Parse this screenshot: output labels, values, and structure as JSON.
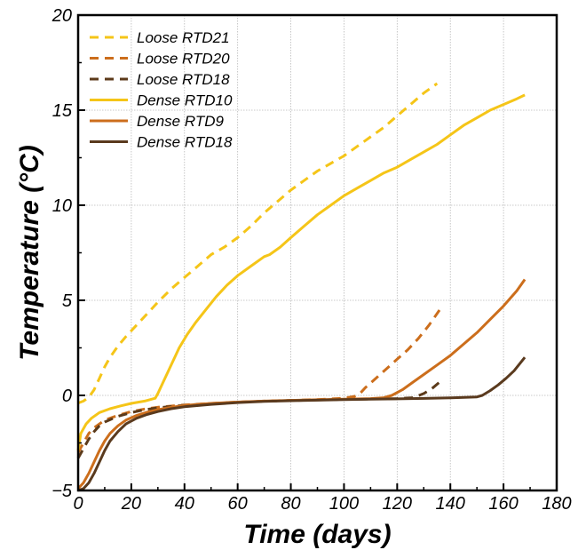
{
  "chart_data": {
    "type": "line",
    "xlabel": "Time (days)",
    "ylabel": "Temperature (°C)",
    "xlim": [
      0,
      180
    ],
    "ylim": [
      -5,
      20
    ],
    "xticks": [
      "0",
      "20",
      "40",
      "60",
      "80",
      "100",
      "120",
      "140",
      "160",
      "180"
    ],
    "yticks": [
      "−5",
      "0",
      "5",
      "10",
      "15",
      "20"
    ],
    "grid": true,
    "legend_position": "top-left",
    "series": [
      {
        "name": "Loose RTD21",
        "color": "#F5C518",
        "dash": "dashed",
        "points": [
          [
            0,
            -0.4
          ],
          [
            2,
            -0.3
          ],
          [
            4,
            -0.1
          ],
          [
            6,
            0.3
          ],
          [
            8,
            0.9
          ],
          [
            10,
            1.5
          ],
          [
            12,
            2.0
          ],
          [
            15,
            2.6
          ],
          [
            18,
            3.1
          ],
          [
            22,
            3.7
          ],
          [
            26,
            4.3
          ],
          [
            30,
            4.9
          ],
          [
            35,
            5.6
          ],
          [
            40,
            6.2
          ],
          [
            45,
            6.8
          ],
          [
            50,
            7.4
          ],
          [
            55,
            7.8
          ],
          [
            60,
            8.3
          ],
          [
            65,
            8.9
          ],
          [
            70,
            9.6
          ],
          [
            75,
            10.2
          ],
          [
            80,
            10.8
          ],
          [
            85,
            11.3
          ],
          [
            90,
            11.8
          ],
          [
            95,
            12.2
          ],
          [
            100,
            12.6
          ],
          [
            105,
            13.1
          ],
          [
            110,
            13.6
          ],
          [
            115,
            14.1
          ],
          [
            120,
            14.7
          ],
          [
            125,
            15.3
          ],
          [
            130,
            15.9
          ],
          [
            135,
            16.4
          ]
        ]
      },
      {
        "name": "Loose RTD20",
        "color": "#CC6E1C",
        "dash": "dashed",
        "points": [
          [
            0,
            -3.0
          ],
          [
            2,
            -2.5
          ],
          [
            4,
            -2.0
          ],
          [
            6,
            -1.7
          ],
          [
            8,
            -1.5
          ],
          [
            10,
            -1.3
          ],
          [
            15,
            -1.05
          ],
          [
            20,
            -0.85
          ],
          [
            25,
            -0.72
          ],
          [
            30,
            -0.62
          ],
          [
            40,
            -0.5
          ],
          [
            50,
            -0.42
          ],
          [
            60,
            -0.35
          ],
          [
            70,
            -0.3
          ],
          [
            80,
            -0.26
          ],
          [
            90,
            -0.22
          ],
          [
            100,
            -0.15
          ],
          [
            104,
            -0.05
          ],
          [
            106,
            0.1
          ],
          [
            108,
            0.4
          ],
          [
            112,
            0.9
          ],
          [
            116,
            1.4
          ],
          [
            120,
            1.9
          ],
          [
            124,
            2.4
          ],
          [
            128,
            3.0
          ],
          [
            132,
            3.7
          ],
          [
            136,
            4.5
          ]
        ]
      },
      {
        "name": "Loose RTD18",
        "color": "#5C3A1A",
        "dash": "dashed",
        "points": [
          [
            0,
            -3.3
          ],
          [
            2,
            -2.8
          ],
          [
            4,
            -2.3
          ],
          [
            6,
            -1.9
          ],
          [
            8,
            -1.6
          ],
          [
            10,
            -1.4
          ],
          [
            15,
            -1.1
          ],
          [
            20,
            -0.9
          ],
          [
            25,
            -0.75
          ],
          [
            30,
            -0.65
          ],
          [
            40,
            -0.52
          ],
          [
            50,
            -0.43
          ],
          [
            60,
            -0.36
          ],
          [
            70,
            -0.31
          ],
          [
            80,
            -0.27
          ],
          [
            90,
            -0.24
          ],
          [
            100,
            -0.21
          ],
          [
            110,
            -0.19
          ],
          [
            120,
            -0.17
          ],
          [
            126,
            -0.12
          ],
          [
            130,
            0.1
          ],
          [
            133,
            0.35
          ],
          [
            136,
            0.7
          ]
        ]
      },
      {
        "name": "Dense RTD10",
        "color": "#F5C518",
        "dash": "solid",
        "points": [
          [
            0,
            -2.9
          ],
          [
            1,
            -2.0
          ],
          [
            3,
            -1.5
          ],
          [
            5,
            -1.2
          ],
          [
            8,
            -0.9
          ],
          [
            12,
            -0.7
          ],
          [
            16,
            -0.55
          ],
          [
            20,
            -0.42
          ],
          [
            25,
            -0.3
          ],
          [
            29,
            -0.15
          ],
          [
            30,
            0.1
          ],
          [
            32,
            0.7
          ],
          [
            35,
            1.6
          ],
          [
            38,
            2.5
          ],
          [
            41,
            3.2
          ],
          [
            44,
            3.8
          ],
          [
            48,
            4.5
          ],
          [
            52,
            5.2
          ],
          [
            56,
            5.8
          ],
          [
            60,
            6.3
          ],
          [
            65,
            6.8
          ],
          [
            70,
            7.3
          ],
          [
            72,
            7.4
          ],
          [
            76,
            7.8
          ],
          [
            80,
            8.3
          ],
          [
            85,
            8.9
          ],
          [
            90,
            9.5
          ],
          [
            95,
            10.0
          ],
          [
            100,
            10.5
          ],
          [
            105,
            10.9
          ],
          [
            110,
            11.3
          ],
          [
            115,
            11.7
          ],
          [
            120,
            12.0
          ],
          [
            125,
            12.4
          ],
          [
            130,
            12.8
          ],
          [
            135,
            13.2
          ],
          [
            140,
            13.7
          ],
          [
            145,
            14.2
          ],
          [
            150,
            14.6
          ],
          [
            155,
            15.0
          ],
          [
            160,
            15.3
          ],
          [
            165,
            15.6
          ],
          [
            168,
            15.8
          ]
        ]
      },
      {
        "name": "Dense RTD9",
        "color": "#CC6E1C",
        "dash": "solid",
        "points": [
          [
            0,
            -4.9
          ],
          [
            2,
            -4.6
          ],
          [
            4,
            -4.1
          ],
          [
            6,
            -3.5
          ],
          [
            8,
            -2.9
          ],
          [
            10,
            -2.4
          ],
          [
            12,
            -2.0
          ],
          [
            15,
            -1.6
          ],
          [
            18,
            -1.3
          ],
          [
            22,
            -1.05
          ],
          [
            26,
            -0.88
          ],
          [
            30,
            -0.75
          ],
          [
            35,
            -0.62
          ],
          [
            40,
            -0.53
          ],
          [
            50,
            -0.42
          ],
          [
            60,
            -0.35
          ],
          [
            70,
            -0.3
          ],
          [
            80,
            -0.26
          ],
          [
            90,
            -0.23
          ],
          [
            100,
            -0.2
          ],
          [
            110,
            -0.17
          ],
          [
            115,
            -0.12
          ],
          [
            118,
            0.0
          ],
          [
            122,
            0.3
          ],
          [
            126,
            0.7
          ],
          [
            130,
            1.1
          ],
          [
            135,
            1.6
          ],
          [
            140,
            2.1
          ],
          [
            145,
            2.7
          ],
          [
            150,
            3.3
          ],
          [
            155,
            4.0
          ],
          [
            160,
            4.7
          ],
          [
            165,
            5.5
          ],
          [
            168,
            6.1
          ]
        ]
      },
      {
        "name": "Dense RTD18",
        "color": "#5A3A1E",
        "dash": "solid",
        "points": [
          [
            0,
            -5.0
          ],
          [
            2,
            -4.9
          ],
          [
            4,
            -4.6
          ],
          [
            6,
            -4.1
          ],
          [
            8,
            -3.5
          ],
          [
            10,
            -2.9
          ],
          [
            12,
            -2.4
          ],
          [
            15,
            -1.9
          ],
          [
            18,
            -1.5
          ],
          [
            22,
            -1.2
          ],
          [
            26,
            -1.0
          ],
          [
            30,
            -0.85
          ],
          [
            35,
            -0.7
          ],
          [
            40,
            -0.6
          ],
          [
            50,
            -0.47
          ],
          [
            60,
            -0.38
          ],
          [
            70,
            -0.32
          ],
          [
            80,
            -0.28
          ],
          [
            90,
            -0.25
          ],
          [
            100,
            -0.22
          ],
          [
            110,
            -0.2
          ],
          [
            120,
            -0.18
          ],
          [
            130,
            -0.16
          ],
          [
            140,
            -0.13
          ],
          [
            150,
            -0.08
          ],
          [
            152,
            0.0
          ],
          [
            155,
            0.25
          ],
          [
            158,
            0.55
          ],
          [
            161,
            0.9
          ],
          [
            164,
            1.3
          ],
          [
            166,
            1.65
          ],
          [
            168,
            2.0
          ]
        ]
      }
    ]
  }
}
